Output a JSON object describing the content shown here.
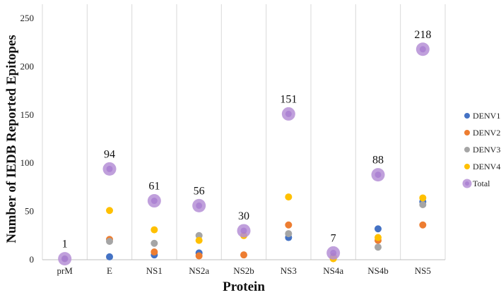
{
  "chart_data": {
    "type": "scatter",
    "title": "",
    "xlabel": "Protein",
    "ylabel": "Number of IEDB Reported Epitopes",
    "categories": [
      "prM",
      "E",
      "NS1",
      "NS2a",
      "NS2b",
      "NS3",
      "NS4a",
      "NS4b",
      "NS5"
    ],
    "ylim": [
      0,
      250
    ],
    "yticks": [
      0,
      50,
      100,
      150,
      200,
      250
    ],
    "grid": "vertical",
    "legend_position": "right",
    "series": [
      {
        "name": "DENV1",
        "color": "#4472c4",
        "values": [
          null,
          3,
          5,
          7,
          null,
          23,
          2,
          32,
          60
        ]
      },
      {
        "name": "DENV2",
        "color": "#ed7d31",
        "values": [
          null,
          21,
          8,
          4,
          5,
          36,
          3,
          20,
          36
        ]
      },
      {
        "name": "DENV3",
        "color": "#a5a5a5",
        "values": [
          1,
          19,
          17,
          25,
          null,
          27,
          2,
          13,
          57
        ]
      },
      {
        "name": "DENV4",
        "color": "#ffc000",
        "values": [
          null,
          51,
          31,
          20,
          25,
          65,
          1,
          23,
          64
        ]
      },
      {
        "name": "Total",
        "color": "#b58fd6",
        "values": [
          1,
          94,
          61,
          56,
          30,
          151,
          7,
          88,
          218
        ]
      }
    ],
    "data_labels": [
      "1",
      "94",
      "61",
      "56",
      "30",
      "151",
      "7",
      "88",
      "218"
    ]
  }
}
